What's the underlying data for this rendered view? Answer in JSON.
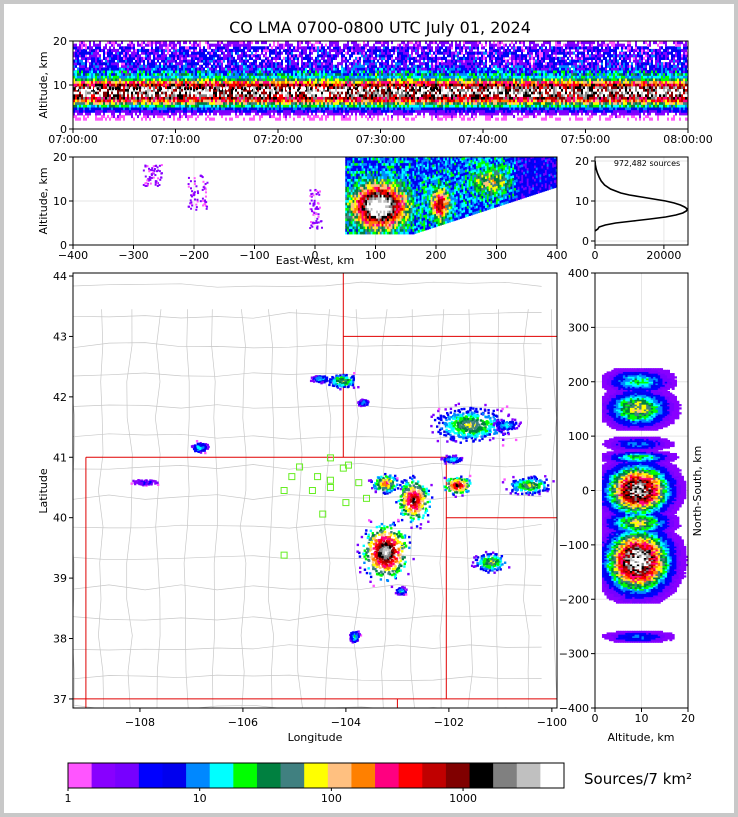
{
  "chart_data": [
    {
      "type": "heatmap",
      "name": "time-altitude",
      "title": "CO LMA 0700-0800 UTC July 01, 2024",
      "ylabel": "Altitude, km",
      "ylim": [
        0,
        20
      ],
      "yticks": [
        "0",
        "10",
        "20"
      ],
      "xticks": [
        "07:00:00",
        "07:10:00",
        "07:20:00",
        "07:30:00",
        "07:40:00",
        "07:50:00",
        "08:00:00"
      ]
    },
    {
      "type": "heatmap",
      "name": "east-west-altitude",
      "xlabel": "East-West, km",
      "ylabel": "Altitude, km",
      "xlim": [
        -400,
        400
      ],
      "ylim": [
        0,
        20
      ],
      "xticks": [
        "−400",
        "−300",
        "−200",
        "−100",
        "0",
        "100",
        "200",
        "300",
        "400"
      ],
      "yticks": [
        "0",
        "10",
        "20"
      ]
    },
    {
      "type": "line",
      "name": "altitude-histogram",
      "annotation": "972,482 sources",
      "xlim": [
        0,
        27000
      ],
      "ylim": [
        0,
        20
      ],
      "xticks": [
        "0",
        "20000"
      ],
      "yticks": [
        "0",
        "10",
        "20"
      ],
      "profile": {
        "altitude_km": [
          2.5,
          3,
          3.5,
          4,
          4.5,
          5,
          5.5,
          6,
          6.5,
          7,
          7.5,
          8,
          8.5,
          9,
          9.5,
          10,
          10.5,
          11,
          11.5,
          12,
          13,
          14,
          15,
          16,
          17,
          18,
          19,
          20
        ],
        "count": [
          0,
          800,
          1200,
          3000,
          6000,
          11000,
          16000,
          20500,
          23500,
          25500,
          26500,
          26800,
          26000,
          24800,
          23000,
          20500,
          17000,
          13500,
          10000,
          7500,
          4500,
          2800,
          1800,
          1200,
          700,
          350,
          120,
          0
        ]
      }
    },
    {
      "type": "heatmap",
      "name": "plan-view",
      "xlabel": "Longitude",
      "ylabel": "Latitude",
      "xlim": [
        -109.3,
        -99.9
      ],
      "ylim": [
        36.85,
        44.05
      ],
      "xticks": [
        "−108",
        "−106",
        "−104",
        "−102",
        "−100"
      ],
      "yticks": [
        "37",
        "38",
        "39",
        "40",
        "41",
        "42",
        "43",
        "44"
      ]
    },
    {
      "type": "heatmap",
      "name": "altitude-north-south",
      "xlabel": "Altitude, km",
      "ylabel": "North-South, km",
      "xlim": [
        0,
        20
      ],
      "ylim": [
        -400,
        400
      ],
      "xticks": [
        "0",
        "10",
        "20"
      ],
      "yticks": [
        "−400",
        "−300",
        "−200",
        "−100",
        "0",
        "100",
        "200",
        "300",
        "400"
      ]
    }
  ],
  "colorbar": {
    "label": "Sources/7 km²",
    "tick_labels": [
      "1",
      "10",
      "100",
      "1000"
    ],
    "colors": [
      "#ff55ff",
      "#8800ff",
      "#7700ff",
      "#0000ff",
      "#0000ee",
      "#0088ff",
      "#00ffff",
      "#00ff00",
      "#008040",
      "#408080",
      "#ffff00",
      "#ffc080",
      "#ff8000",
      "#ff0080",
      "#ff0000",
      "#c00000",
      "#800000",
      "#000000",
      "#808080",
      "#c0c0c0",
      "#ffffff"
    ]
  },
  "stations": [
    [
      -104.9,
      40.84
    ],
    [
      -104.55,
      40.68
    ],
    [
      -104.3,
      40.62
    ],
    [
      -105.05,
      40.68
    ],
    [
      -104.05,
      40.82
    ],
    [
      -103.95,
      40.87
    ],
    [
      -104.3,
      40.99
    ],
    [
      -103.75,
      40.58
    ],
    [
      -105.2,
      40.45
    ],
    [
      -104.65,
      40.45
    ],
    [
      -104.3,
      40.5
    ],
    [
      -103.6,
      40.32
    ],
    [
      -104.0,
      40.25
    ],
    [
      -104.45,
      40.06
    ],
    [
      -105.2,
      39.38
    ]
  ],
  "region_cells": [
    {
      "lat": 42.31,
      "lon": -104.5,
      "dlat": 0.08,
      "dlon": 0.22,
      "level": 2
    },
    {
      "lat": 42.28,
      "lon": -104.08,
      "dlat": 0.15,
      "dlon": 0.35,
      "level": 3
    },
    {
      "lat": 41.92,
      "lon": -103.68,
      "dlat": 0.06,
      "dlon": 0.12,
      "level": 2
    },
    {
      "lat": 41.55,
      "lon": -101.6,
      "dlat": 0.35,
      "dlon": 0.9,
      "level": 3
    },
    {
      "lat": 41.55,
      "lon": -100.9,
      "dlat": 0.12,
      "dlon": 0.3,
      "level": 2
    },
    {
      "lat": 41.18,
      "lon": -106.85,
      "dlat": 0.1,
      "dlon": 0.2,
      "level": 2
    },
    {
      "lat": 40.6,
      "lon": -107.9,
      "dlat": 0.05,
      "dlon": 0.3,
      "level": 1
    },
    {
      "lat": 40.98,
      "lon": -101.95,
      "dlat": 0.08,
      "dlon": 0.25,
      "level": 2
    },
    {
      "lat": 40.58,
      "lon": -103.25,
      "dlat": 0.2,
      "dlon": 0.32,
      "level": 4
    },
    {
      "lat": 40.3,
      "lon": -102.7,
      "dlat": 0.45,
      "dlon": 0.4,
      "level": 5
    },
    {
      "lat": 40.55,
      "lon": -101.85,
      "dlat": 0.18,
      "dlon": 0.35,
      "level": 5
    },
    {
      "lat": 40.55,
      "lon": -100.45,
      "dlat": 0.18,
      "dlon": 0.55,
      "level": 3
    },
    {
      "lat": 39.45,
      "lon": -103.25,
      "dlat": 0.55,
      "dlon": 0.55,
      "level": 6
    },
    {
      "lat": 39.28,
      "lon": -101.2,
      "dlat": 0.2,
      "dlon": 0.4,
      "level": 3
    },
    {
      "lat": 38.8,
      "lon": -102.95,
      "dlat": 0.08,
      "dlon": 0.12,
      "level": 2
    },
    {
      "lat": 38.05,
      "lon": -103.85,
      "dlat": 0.12,
      "dlon": 0.12,
      "level": 2
    }
  ]
}
